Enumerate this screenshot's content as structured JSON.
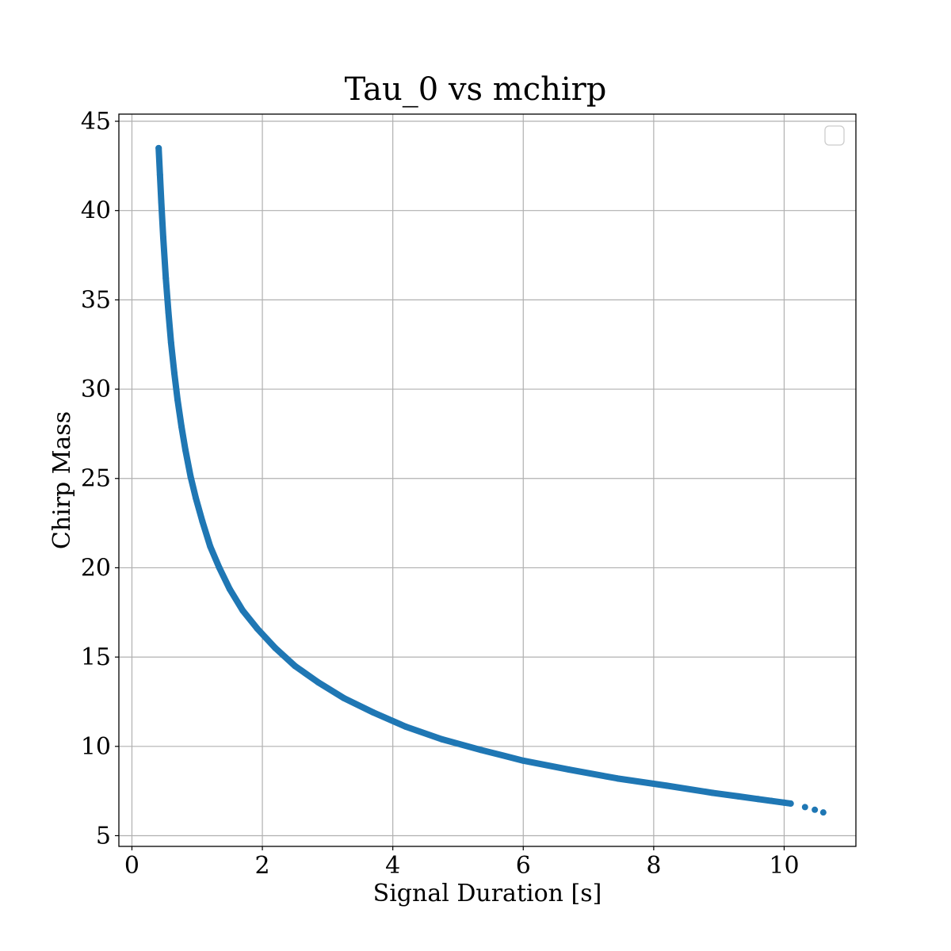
{
  "chart_data": {
    "type": "scatter",
    "title": "Tau_0 vs mchirp",
    "xlabel": "Signal Duration [s]",
    "ylabel": "Chirp Mass",
    "xlim": [
      -0.2,
      11.1
    ],
    "ylim": [
      4.4,
      45.4
    ],
    "xticks": [
      0,
      2,
      4,
      6,
      8,
      10
    ],
    "yticks": [
      5,
      10,
      15,
      20,
      25,
      30,
      35,
      40,
      45
    ],
    "grid": true,
    "legend": {
      "placement": "top-right",
      "entries": []
    },
    "marker_color": "#1f77b4",
    "series": [
      {
        "x": [
          0.41,
          0.43,
          0.45,
          0.48,
          0.52,
          0.56,
          0.6,
          0.65,
          0.7,
          0.76,
          0.82,
          0.9,
          0.98,
          1.08,
          1.2,
          1.34,
          1.5,
          1.7,
          1.92,
          2.2,
          2.5,
          2.85,
          3.25,
          3.7,
          4.2,
          4.75,
          5.35,
          6.0,
          6.7,
          7.45,
          8.2,
          8.9,
          9.3,
          9.6,
          9.8,
          10.0,
          10.1,
          10.32,
          10.47,
          10.6
        ],
        "y": [
          43.5,
          42.0,
          40.5,
          38.5,
          36.2,
          34.3,
          32.6,
          30.9,
          29.4,
          27.9,
          26.6,
          25.1,
          23.9,
          22.6,
          21.2,
          20.0,
          18.8,
          17.6,
          16.6,
          15.5,
          14.5,
          13.6,
          12.7,
          11.9,
          11.1,
          10.4,
          9.8,
          9.2,
          8.7,
          8.2,
          7.8,
          7.4,
          7.2,
          7.05,
          6.95,
          6.85,
          6.8,
          6.6,
          6.45,
          6.3
        ]
      }
    ]
  }
}
